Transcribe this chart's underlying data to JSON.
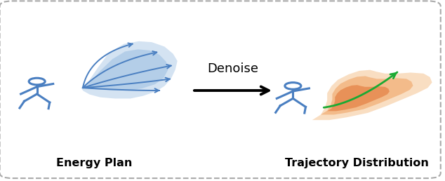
{
  "bg_color": "#ffffff",
  "border_color": "#aaaaaa",
  "figure_size": [
    6.34,
    2.58
  ],
  "dpi": 100,
  "pedestrian_color": "#4a7fc1",
  "blue_blob_color": "#7aa8d8",
  "orange_blob_color_outer": "#f5c89a",
  "orange_blob_color_mid": "#f0a465",
  "orange_blob_color_inner": "#e07030",
  "green_arrow_color": "#1aaa33",
  "denoise_text": "Denoise",
  "label_left": "Energy Plan",
  "label_right": "Trajectory Distribution",
  "label_fontsize": 11.5,
  "denoise_fontsize": 13
}
